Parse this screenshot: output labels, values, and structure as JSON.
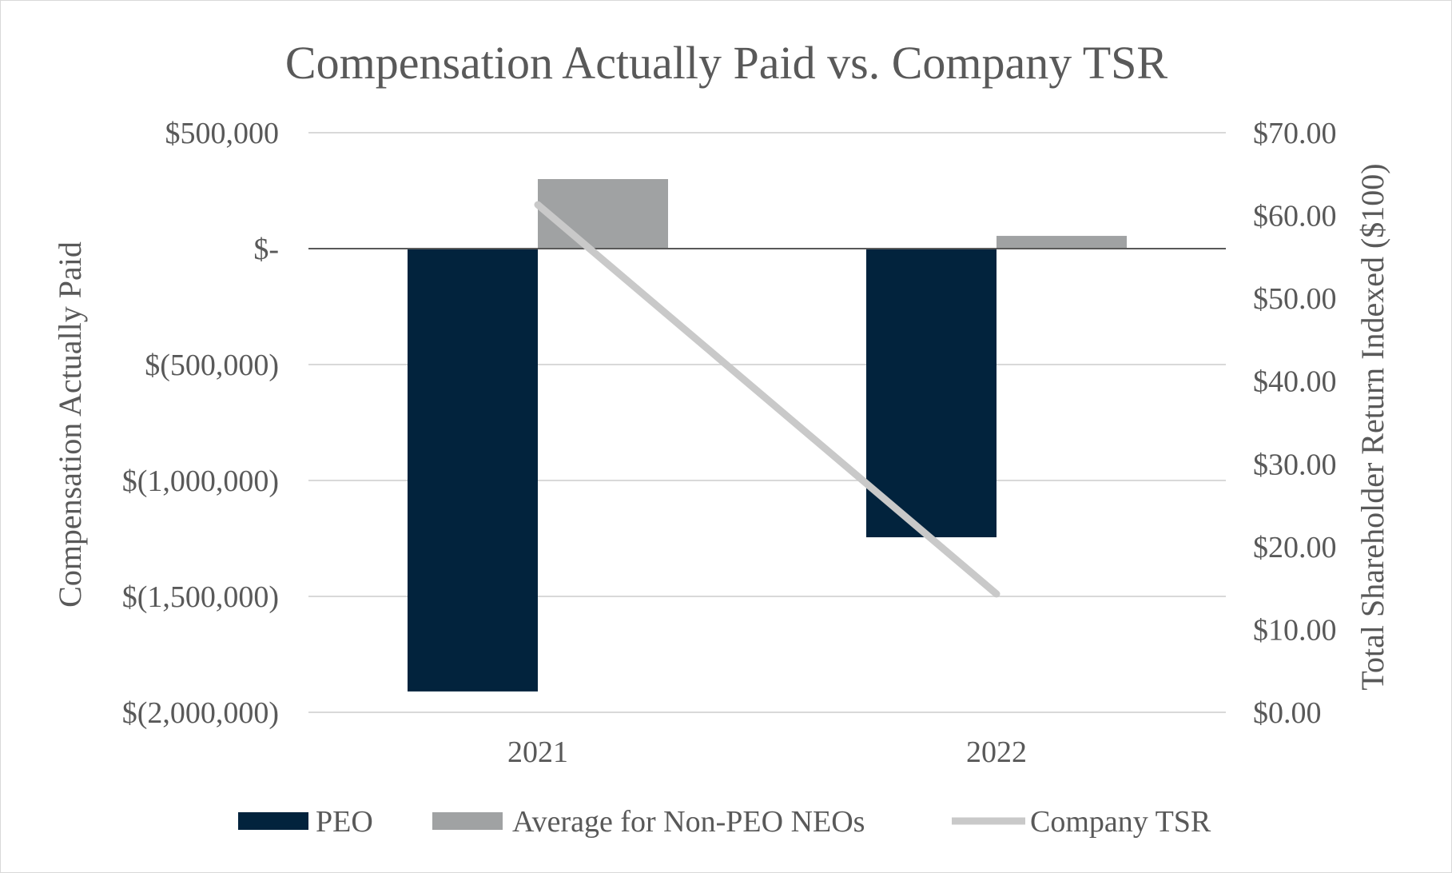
{
  "chart_data": {
    "type": "bar",
    "title": "Compensation Actually Paid vs. Company TSR",
    "categories": [
      "2021",
      "2022"
    ],
    "ylabel": "Compensation Actually Paid",
    "y2label": "Total Shareholder Return Indexed ($100)",
    "ylim": [
      -2000000,
      500000
    ],
    "y2lim": [
      0,
      70
    ],
    "yticks": [
      500000,
      0,
      -500000,
      -1000000,
      -1500000,
      -2000000
    ],
    "ytick_labels": [
      "$500,000",
      "$-",
      "$(500,000)",
      "$(1,000,000)",
      "$(1,500,000)",
      "$(2,000,000)"
    ],
    "y2ticks": [
      70,
      60,
      50,
      40,
      30,
      20,
      10,
      0
    ],
    "y2tick_labels": [
      "$70.00",
      "$60.00",
      "$50.00",
      "$40.00",
      "$30.00",
      "$20.00",
      "$10.00",
      "$0.00"
    ],
    "grid": true,
    "legend_position": "bottom",
    "series": [
      {
        "name": "PEO",
        "type": "bar",
        "axis": "left",
        "color": "#02233d",
        "values": [
          -1910000,
          -1245000
        ]
      },
      {
        "name": "Average for Non-PEO NEOs",
        "type": "bar",
        "axis": "left",
        "color": "#a0a2a3",
        "values": [
          300000,
          55000
        ]
      },
      {
        "name": "Company TSR",
        "type": "line",
        "axis": "right",
        "color": "#c9c9c9",
        "values": [
          61.3,
          14.3
        ]
      }
    ]
  }
}
